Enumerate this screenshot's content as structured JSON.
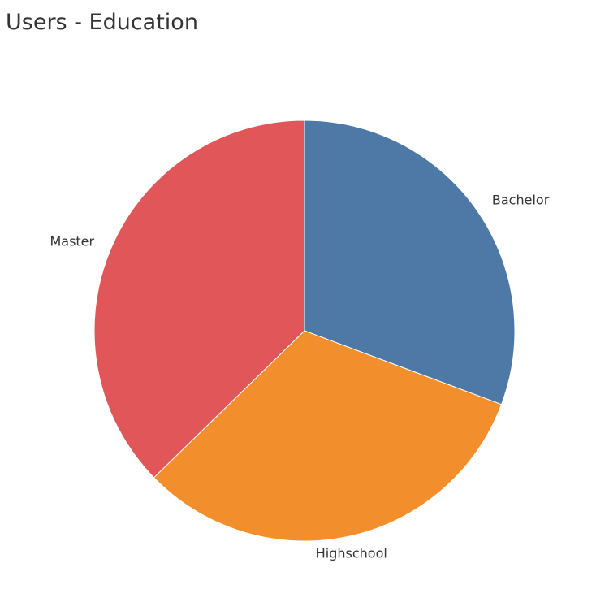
{
  "chart_data": {
    "type": "pie",
    "title": "Users - Education",
    "slices": [
      {
        "label": "Bachelor",
        "value": 30.7,
        "color": "#4e79a7"
      },
      {
        "label": "Highschool",
        "value": 32.0,
        "color": "#f28e2b"
      },
      {
        "label": "Master",
        "value": 37.3,
        "color": "#e15759"
      }
    ],
    "start_angle_deg": 0,
    "direction": "clockwise",
    "legend": "none"
  }
}
